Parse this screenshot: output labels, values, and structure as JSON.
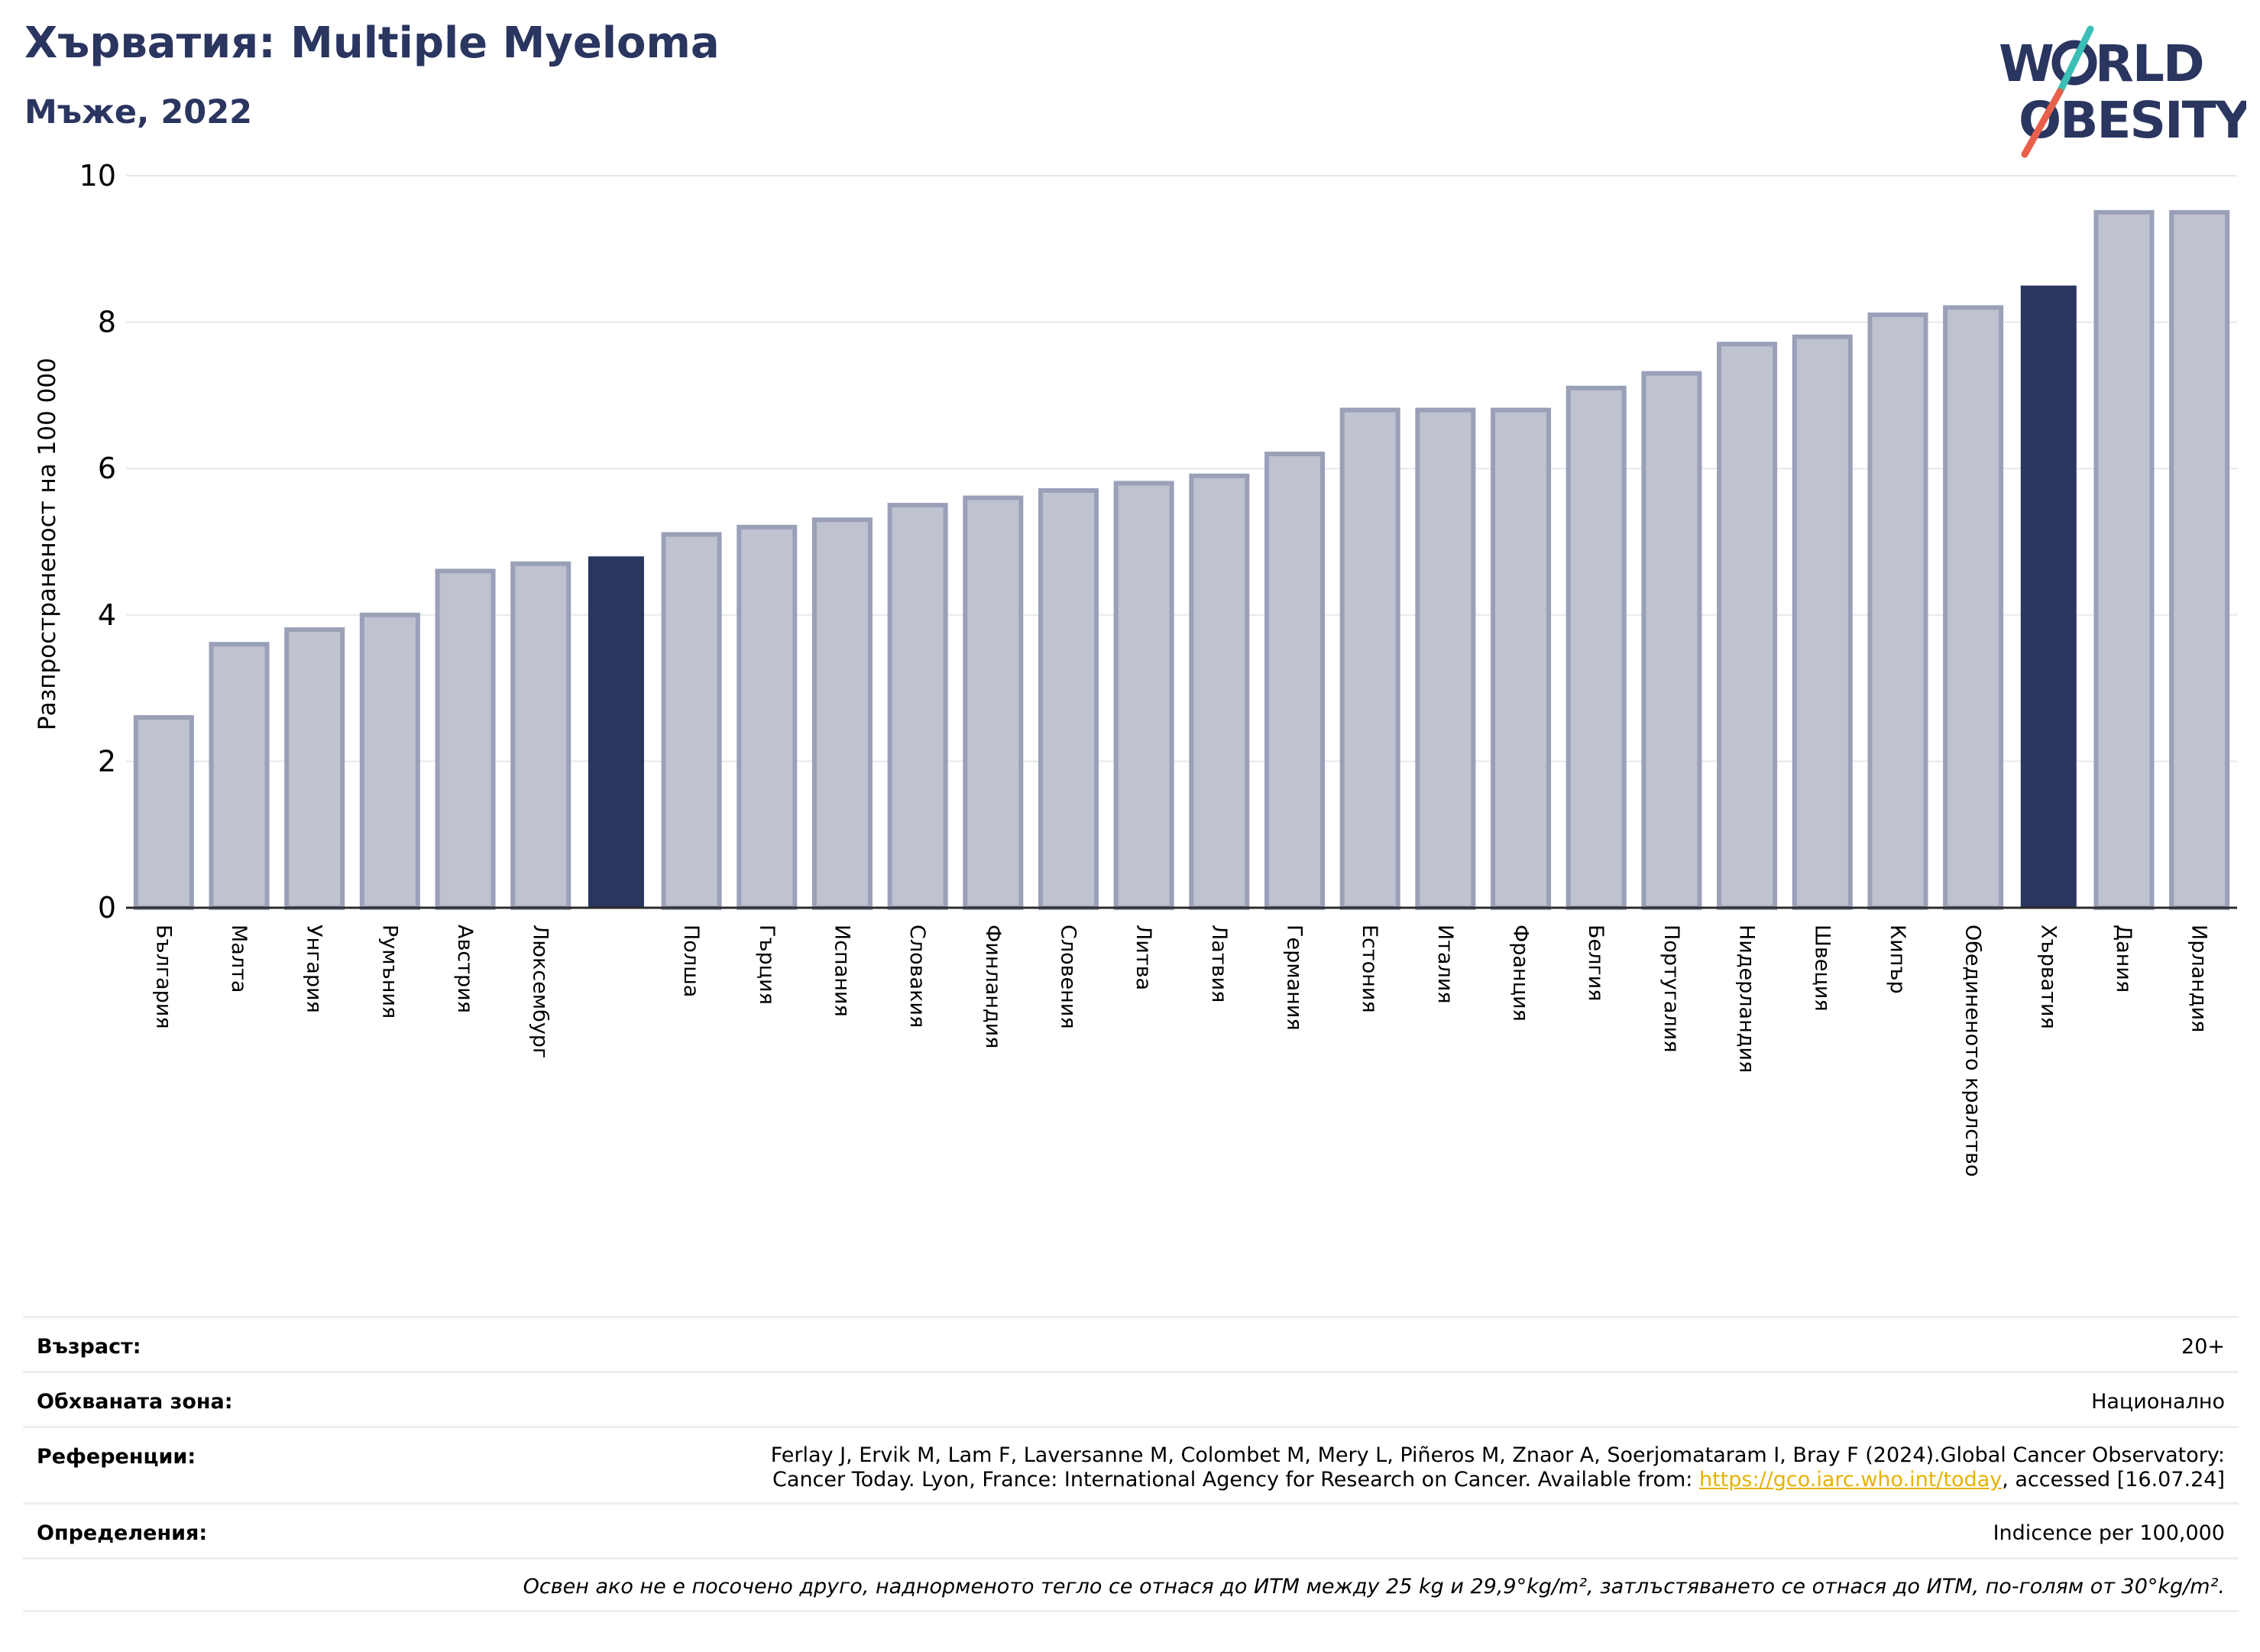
{
  "header": {
    "title": "Хърватия: Multiple Myeloma",
    "subtitle": "Мъже, 2022"
  },
  "logo": {
    "line1": "W RLD",
    "line2": "OBESITY",
    "colors": {
      "text": "#2a3560",
      "slash_teal": "#3bbfb6",
      "slash_red": "#e8604c"
    }
  },
  "chart_data": {
    "type": "bar",
    "title": "",
    "xlabel": "",
    "ylabel": "Разпространеност  на 100 000",
    "ylim": [
      0,
      10
    ],
    "yticks": [
      "0",
      "2",
      "4",
      "6",
      "8",
      "10"
    ],
    "grid": true,
    "categories": [
      "България",
      "Малта",
      "Унгария",
      "Румъния",
      "Австрия",
      "Люксембург",
      "",
      "Полша",
      "Гърция",
      "Испания",
      "Словакия",
      "Финландия",
      "Словения",
      "Литва",
      "Латвия",
      "Германия",
      "Естония",
      "Италия",
      "Франция",
      "Белгия",
      "Португалия",
      "Нидерландия",
      "Швеция",
      "Кипър",
      "Обединеното кралство",
      "Хърватия",
      "Дания",
      "Ирландия"
    ],
    "values": [
      2.6,
      3.6,
      3.8,
      4.0,
      4.6,
      4.7,
      4.8,
      5.1,
      5.2,
      5.3,
      5.5,
      5.6,
      5.7,
      5.8,
      5.9,
      6.2,
      6.8,
      6.8,
      6.8,
      7.1,
      7.3,
      7.7,
      7.8,
      8.1,
      8.2,
      8.5,
      9.5,
      9.5
    ],
    "highlighted_indices": [
      6,
      25
    ],
    "colors": {
      "bar": "#bfc2cf",
      "bar_edge": "#9aa0b8",
      "highlight": "#2a3560",
      "grid": "#e6e8ee",
      "axis": "#2b2b2b"
    }
  },
  "info": {
    "age_label": "Възраст:",
    "age_value": "20+",
    "coverage_label": "Обхваната зона:",
    "coverage_value": "Национално",
    "references_label": "Референции:",
    "references_line1": "Ferlay J, Ervik M, Lam F, Laversanne M, Colombet M, Mery L, Piñeros M, Znaor A, Soerjomataram I, Bray F (2024).Global Cancer Observatory:",
    "references_line2_pre": "Cancer Today. Lyon, France: International Agency for Research on Cancer. Available from: ",
    "references_link": "https://gco.iarc.who.int/today",
    "references_line2_post": ", accessed [16.07.24]",
    "definitions_label": "Определения:",
    "definitions_value": "Indicence per 100,000",
    "note": "Освен ако не е посочено друго, наднорменото тегло се отнася до ИТМ между 25 kg и 29,9°kg/m², затлъстяването се отнася до ИТМ, по-голям от 30°kg/m²."
  }
}
